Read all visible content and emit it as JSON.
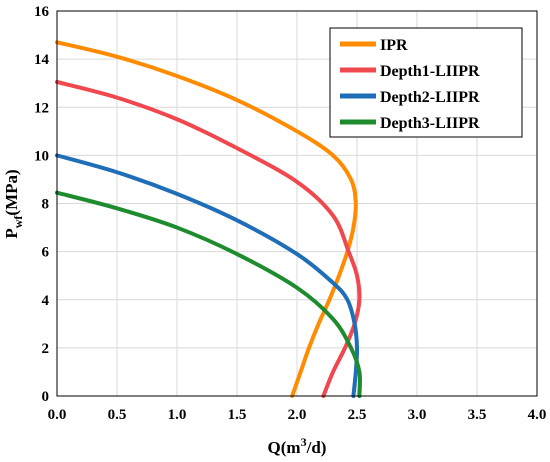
{
  "chart_data": {
    "type": "line",
    "xlabel_main": "Q(m",
    "xlabel_sup": "3",
    "xlabel_end": "/d)",
    "ylabel_main": "P",
    "ylabel_sub": "wf",
    "ylabel_end": "(MPa)",
    "xlim": [
      0,
      4
    ],
    "ylim": [
      0,
      16
    ],
    "xticks": [
      "0.0",
      "0.5",
      "1.0",
      "1.5",
      "2.0",
      "2.5",
      "3.0",
      "3.5",
      "4.0"
    ],
    "yticks": [
      "0",
      "2",
      "4",
      "6",
      "8",
      "10",
      "12",
      "14",
      "16"
    ],
    "grid": true,
    "legend_position": "top-right",
    "series": [
      {
        "name": "IPR",
        "color": "#ff8c00",
        "points": [
          [
            0,
            14.7
          ],
          [
            0.5,
            14.1
          ],
          [
            1.0,
            13.3
          ],
          [
            1.5,
            12.3
          ],
          [
            2.0,
            11.0
          ],
          [
            2.3,
            10.0
          ],
          [
            2.45,
            9.0
          ],
          [
            2.49,
            8.0
          ],
          [
            2.47,
            7.0
          ],
          [
            2.42,
            6.0
          ],
          [
            2.35,
            5.0
          ],
          [
            2.27,
            4.0
          ],
          [
            2.18,
            3.0
          ],
          [
            2.1,
            2.0
          ],
          [
            2.03,
            1.0
          ],
          [
            1.96,
            0
          ]
        ]
      },
      {
        "name": "Depth1-LIIPR",
        "color": "#f0484e",
        "points": [
          [
            0,
            13.05
          ],
          [
            0.5,
            12.4
          ],
          [
            1.0,
            11.5
          ],
          [
            1.5,
            10.3
          ],
          [
            2.0,
            8.9
          ],
          [
            2.3,
            7.5
          ],
          [
            2.43,
            6.0
          ],
          [
            2.5,
            5.0
          ],
          [
            2.52,
            4.0
          ],
          [
            2.48,
            3.0
          ],
          [
            2.4,
            2.0
          ],
          [
            2.3,
            1.0
          ],
          [
            2.22,
            0
          ]
        ]
      },
      {
        "name": "Depth2-LIIPR",
        "color": "#1f6eb8",
        "points": [
          [
            0,
            10.0
          ],
          [
            0.5,
            9.3
          ],
          [
            1.0,
            8.4
          ],
          [
            1.5,
            7.3
          ],
          [
            2.0,
            5.9
          ],
          [
            2.3,
            4.7
          ],
          [
            2.42,
            4.0
          ],
          [
            2.48,
            3.0
          ],
          [
            2.5,
            2.0
          ],
          [
            2.49,
            1.0
          ],
          [
            2.47,
            0
          ]
        ]
      },
      {
        "name": "Depth3-LIIPR",
        "color": "#1e8c2e",
        "points": [
          [
            0,
            8.45
          ],
          [
            0.5,
            7.8
          ],
          [
            1.0,
            7.0
          ],
          [
            1.5,
            5.9
          ],
          [
            2.0,
            4.5
          ],
          [
            2.3,
            3.2
          ],
          [
            2.45,
            2.0
          ],
          [
            2.52,
            1.0
          ],
          [
            2.52,
            0
          ]
        ]
      }
    ]
  }
}
